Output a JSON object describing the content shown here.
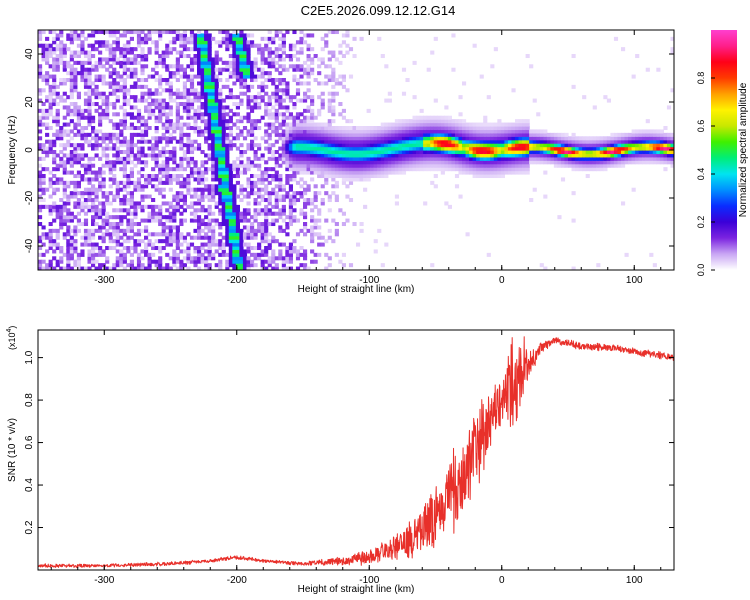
{
  "title": "C2E5.2026.099.12.12.G14",
  "chart_data": [
    {
      "type": "heatmap",
      "xlabel": "Height of straight line (km)",
      "ylabel": "Frequency (Hz)",
      "xlim": [
        -350,
        130
      ],
      "ylim": [
        -50,
        50
      ],
      "xticks": [
        -300,
        -200,
        -100,
        0,
        100
      ],
      "yticks": [
        -40,
        -20,
        0,
        20,
        40
      ],
      "colorbar": {
        "label": "Normalized spectral amplitude",
        "range": [
          0,
          1
        ],
        "ticks": [
          "0.0",
          "0.2",
          "0.4",
          "0.6",
          "0.8"
        ],
        "colors": [
          "#ffffff",
          "#c9a6f4",
          "#7b24e0",
          "#3b00d8",
          "#0a2cff",
          "#0090ff",
          "#00e4f0",
          "#00ee78",
          "#3ff000",
          "#c8e800",
          "#fff200",
          "#ffa000",
          "#ff3a00",
          "#ff0018",
          "#ff1f8a",
          "#ff3fcf"
        ]
      },
      "features": {
        "noise_region_x": [
          -350,
          -120
        ],
        "signal_band": {
          "x_start": -168,
          "x_end": 130,
          "center_freq": 0
        },
        "diagonal_streaks": [
          {
            "x": [
              -227,
              -198
            ],
            "y": [
              48,
              -50
            ]
          },
          {
            "x": [
              -212,
              -205
            ],
            "y": [
              -14,
              -24
            ]
          },
          {
            "x": [
              -200,
              -192
            ],
            "y": [
              48,
              30
            ]
          }
        ]
      }
    },
    {
      "type": "line",
      "xlabel": "Height of straight line (km)",
      "ylabel": "SNR (10 * v/v)",
      "scale_label": "(x10",
      "scale_exponent": "4",
      "scale_suffix": ")",
      "xlim": [
        -350,
        130
      ],
      "ylim": [
        0,
        1.13
      ],
      "xticks": [
        -300,
        -200,
        -100,
        0,
        100
      ],
      "yticks": [
        "0.2",
        "0.4",
        "0.6",
        "0.8",
        "1.0"
      ],
      "color": "#e8302a",
      "series": [
        {
          "x": [
            -350,
            -300,
            -250,
            -225,
            -200,
            -175,
            -150,
            -125,
            -100,
            -80,
            -60,
            -50,
            -40,
            -30,
            -20,
            -10,
            -5,
            0,
            5,
            10,
            15,
            20,
            25,
            30,
            40,
            50,
            60,
            80,
            100,
            120,
            130
          ],
          "y": [
            0.02,
            0.02,
            0.03,
            0.04,
            0.06,
            0.04,
            0.03,
            0.04,
            0.06,
            0.1,
            0.18,
            0.26,
            0.34,
            0.42,
            0.55,
            0.68,
            0.75,
            0.8,
            0.85,
            0.9,
            0.96,
            0.95,
            1.0,
            1.05,
            1.08,
            1.07,
            1.05,
            1.05,
            1.03,
            1.01,
            1.0
          ],
          "noise_amplitude": [
            0.01,
            0.01,
            0.01,
            0.01,
            0.01,
            0.01,
            0.01,
            0.02,
            0.04,
            0.08,
            0.12,
            0.16,
            0.2,
            0.22,
            0.22,
            0.2,
            0.18,
            0.16,
            0.22,
            0.28,
            0.2,
            0.08,
            0.05,
            0.03,
            0.02,
            0.02,
            0.02,
            0.02,
            0.02,
            0.02,
            0.02
          ]
        }
      ]
    }
  ]
}
